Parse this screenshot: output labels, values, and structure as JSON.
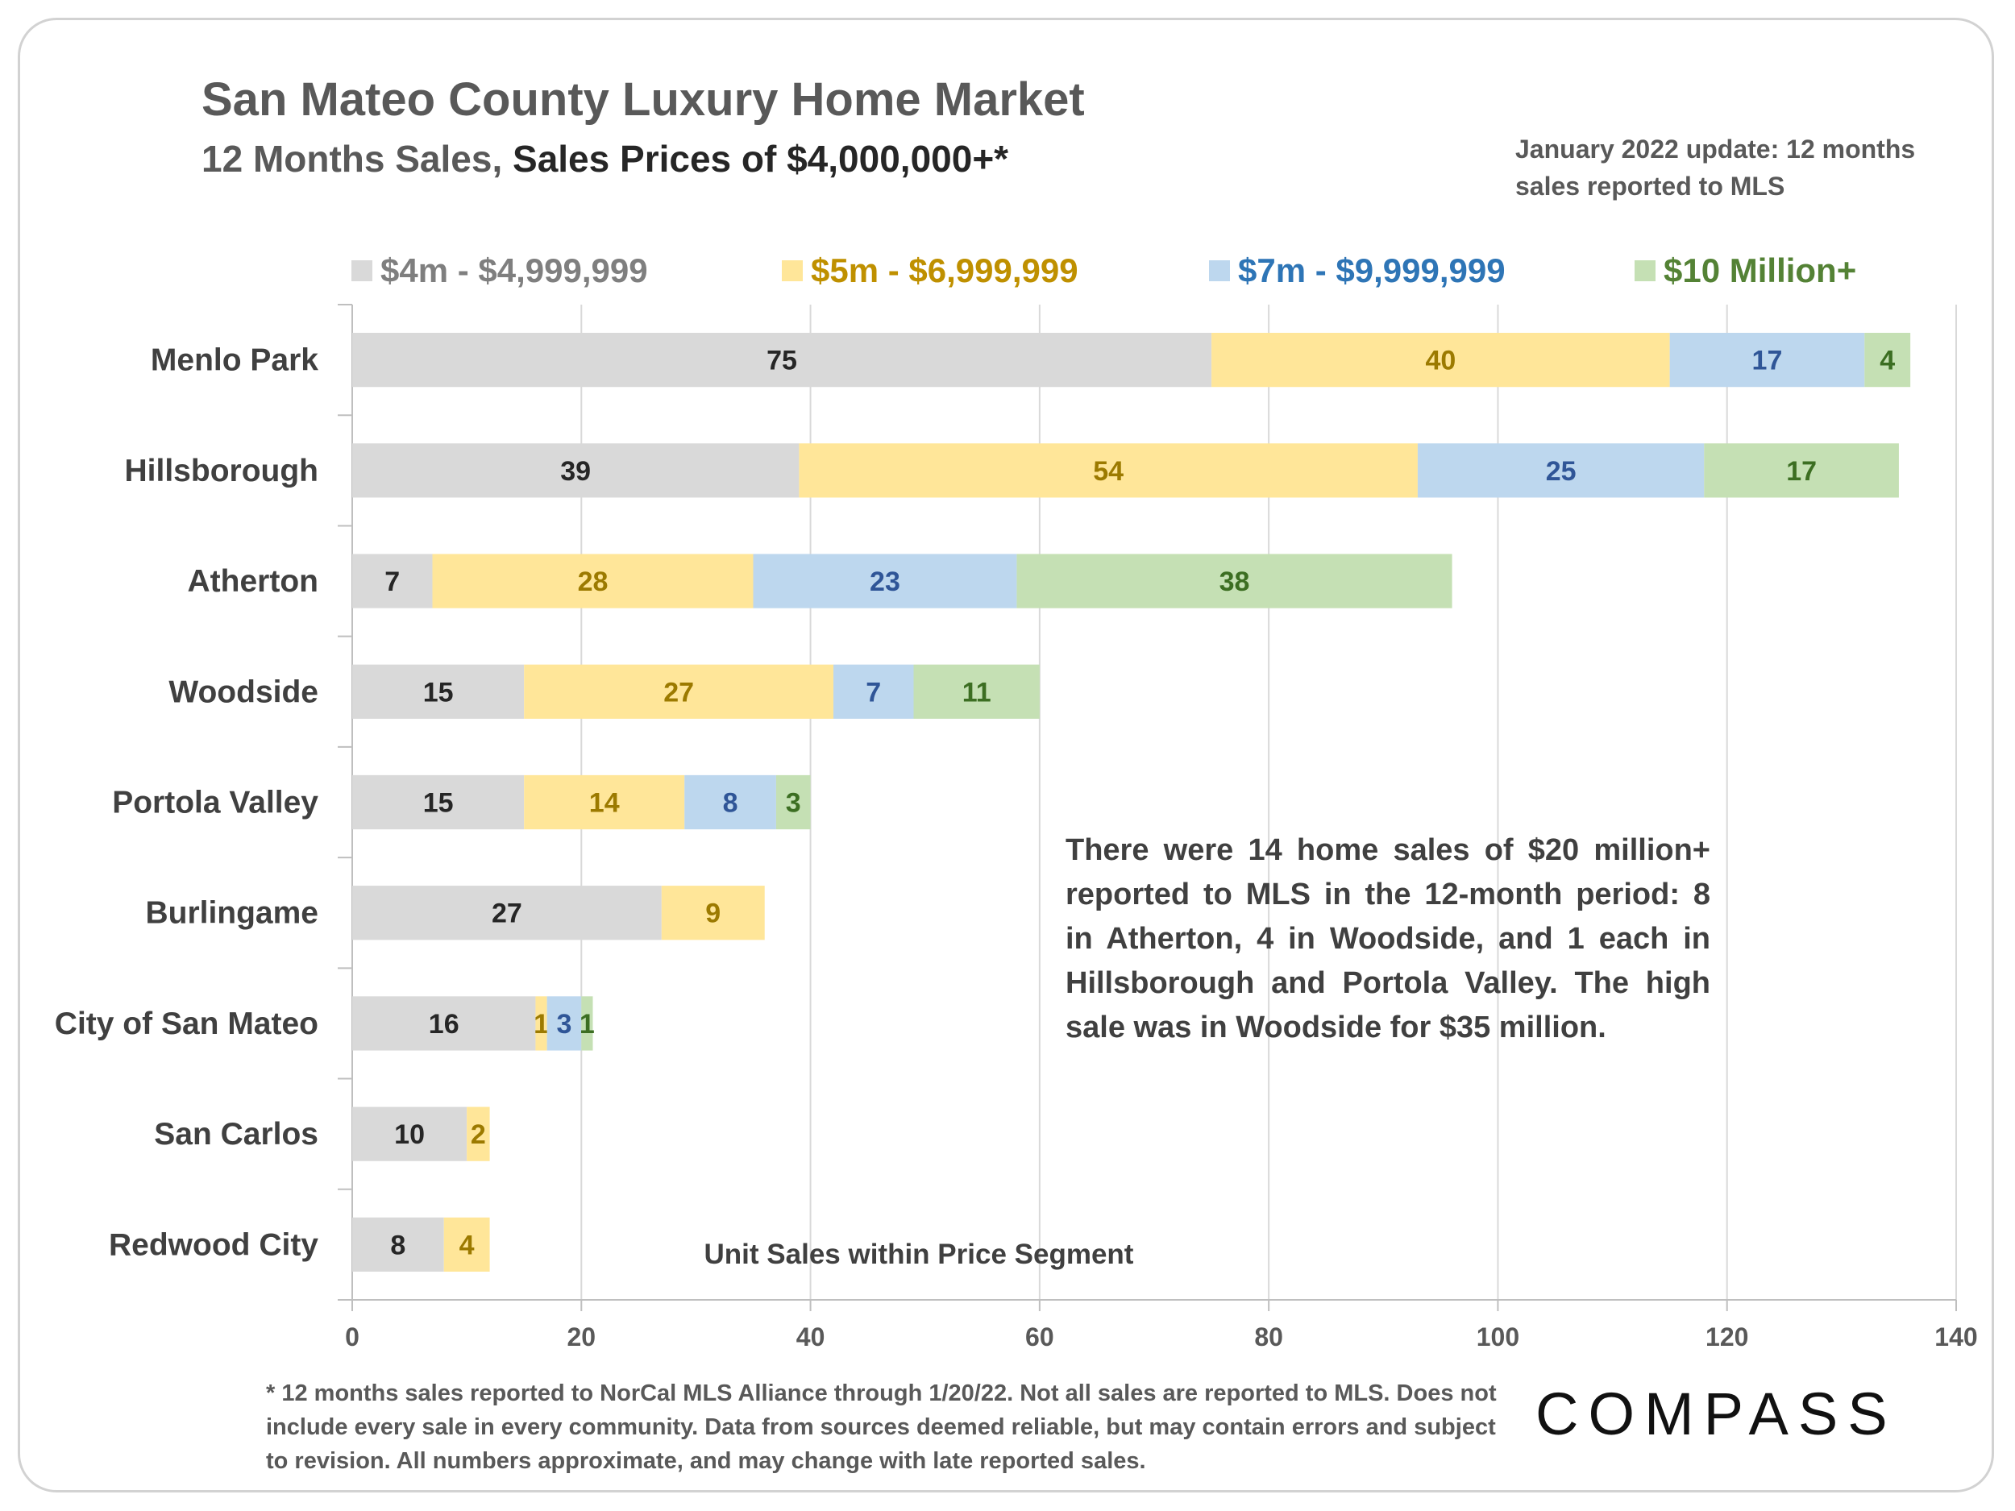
{
  "header": {
    "title": "San Mateo County Luxury Home Market",
    "subtitle_prefix": "12 Months Sales,",
    "subtitle_emph": "Sales Prices of $4,000,000+*",
    "update_note": "January 2022 update: 12 months sales reported to MLS"
  },
  "annotation": "There were 14 home sales of $20 million+ reported to MLS in the 12-month period: 8 in Atherton, 4 in Woodside, and 1 each in Hillsborough and Portola Valley. The high sale was in Woodside for $35 million.",
  "footnote": "* 12 months sales reported to NorCal MLS Alliance through 1/20/22. Not all sales are reported to MLS. Does not include every sale in every community. Data from  sources deemed reliable, but may contain errors and subject to revision. All numbers approximate, and may change with late reported sales.",
  "brand": "COMPASS",
  "colors": {
    "bars": [
      "#d9d9d9",
      "#ffe699",
      "#bdd7ee",
      "#c5e0b4"
    ],
    "labels": [
      "#262626",
      "#9c7a00",
      "#2f5597",
      "#3c6e22"
    ],
    "legend_text": [
      "#7f7f7f",
      "#bf9000",
      "#2e75b6",
      "#548235"
    ]
  },
  "chart_data": {
    "type": "bar",
    "orientation": "horizontal",
    "stacked": true,
    "categories": [
      "Menlo Park",
      "Hillsborough",
      "Atherton",
      "Woodside",
      "Portola Valley",
      "Burlingame",
      "City of San Mateo",
      "San Carlos",
      "Redwood City"
    ],
    "series": [
      {
        "name": "$4m - $4,999,999",
        "values": [
          75,
          39,
          7,
          15,
          15,
          27,
          16,
          10,
          8
        ]
      },
      {
        "name": "$5m - $6,999,999",
        "values": [
          40,
          54,
          28,
          27,
          14,
          9,
          1,
          2,
          4
        ]
      },
      {
        "name": "$7m - $9,999,999",
        "values": [
          17,
          25,
          23,
          7,
          8,
          null,
          3,
          null,
          null
        ]
      },
      {
        "name": "$10 Million+",
        "values": [
          4,
          17,
          38,
          11,
          3,
          null,
          1,
          null,
          null
        ]
      }
    ],
    "xlabel": "Unit Sales within Price Segment",
    "xlim": [
      0,
      140
    ],
    "xticks": [
      0,
      20,
      40,
      60,
      80,
      100,
      120,
      140
    ],
    "grid": "vertical",
    "legend_position": "top"
  }
}
